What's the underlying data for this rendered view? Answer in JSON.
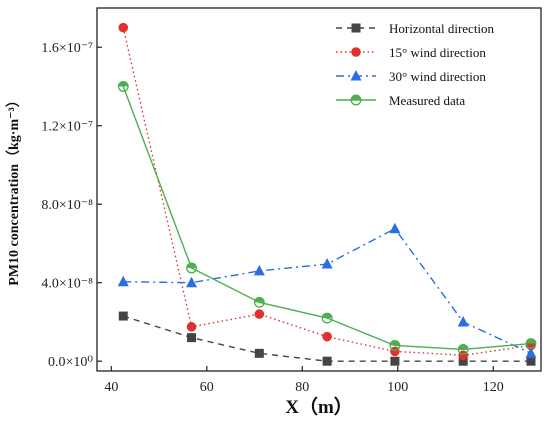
{
  "chart_data": {
    "type": "line",
    "xlabel": "X（m）",
    "ylabel": "PM10 concentration（kg·m⁻³）",
    "xlim": [
      37,
      130
    ],
    "ylim": [
      -5e-09,
      1.8e-07
    ],
    "x_ticks": [
      40,
      60,
      80,
      100,
      120
    ],
    "y_ticks": [
      0,
      4e-08,
      8e-08,
      1.2e-07,
      1.6e-07
    ],
    "x_tick_labels": [
      "40",
      "60",
      "80",
      "100",
      "120"
    ],
    "y_tick_labels": [
      "0.0×10⁰",
      "4.0×10⁻⁸",
      "8.0×10⁻⁸",
      "1.2×10⁻⁷",
      "1.6×10⁻⁷"
    ],
    "grid": false,
    "legend_position": "top-right",
    "series": [
      {
        "name": "Horizontal  direction",
        "color": "#444444",
        "line_style": "dashed",
        "marker": "square",
        "x": [
          42.5,
          56.8,
          71,
          85.2,
          99.4,
          113.7,
          127.9
        ],
        "y": [
          2.3e-08,
          1.2e-08,
          4e-09,
          0,
          0,
          0,
          0
        ]
      },
      {
        "name": "15° wind direction",
        "color": "#e03030",
        "line_style": "dotted",
        "marker": "circle",
        "x": [
          42.5,
          56.8,
          71,
          85.2,
          99.4,
          113.7,
          127.9
        ],
        "y": [
          1.7e-07,
          1.75e-08,
          2.4e-08,
          1.25e-08,
          5e-09,
          3e-09,
          8e-09
        ]
      },
      {
        "name": "30° wind direction",
        "color": "#2a6ee0",
        "line_style": "dashdot",
        "marker": "triangle",
        "x": [
          42.5,
          56.8,
          71,
          85.2,
          99.4,
          113.7,
          127.9
        ],
        "y": [
          4.05e-08,
          4e-08,
          4.6e-08,
          4.95e-08,
          6.75e-08,
          2e-08,
          4e-09
        ]
      },
      {
        "name": "Measured data",
        "color": "#4caf50",
        "line_style": "solid",
        "marker": "half-open-circle",
        "x": [
          42.5,
          56.8,
          71,
          85.2,
          99.4,
          113.7,
          127.9
        ],
        "y": [
          1.4e-07,
          4.75e-08,
          3e-08,
          2.2e-08,
          8e-09,
          6e-09,
          9e-09
        ]
      }
    ]
  }
}
